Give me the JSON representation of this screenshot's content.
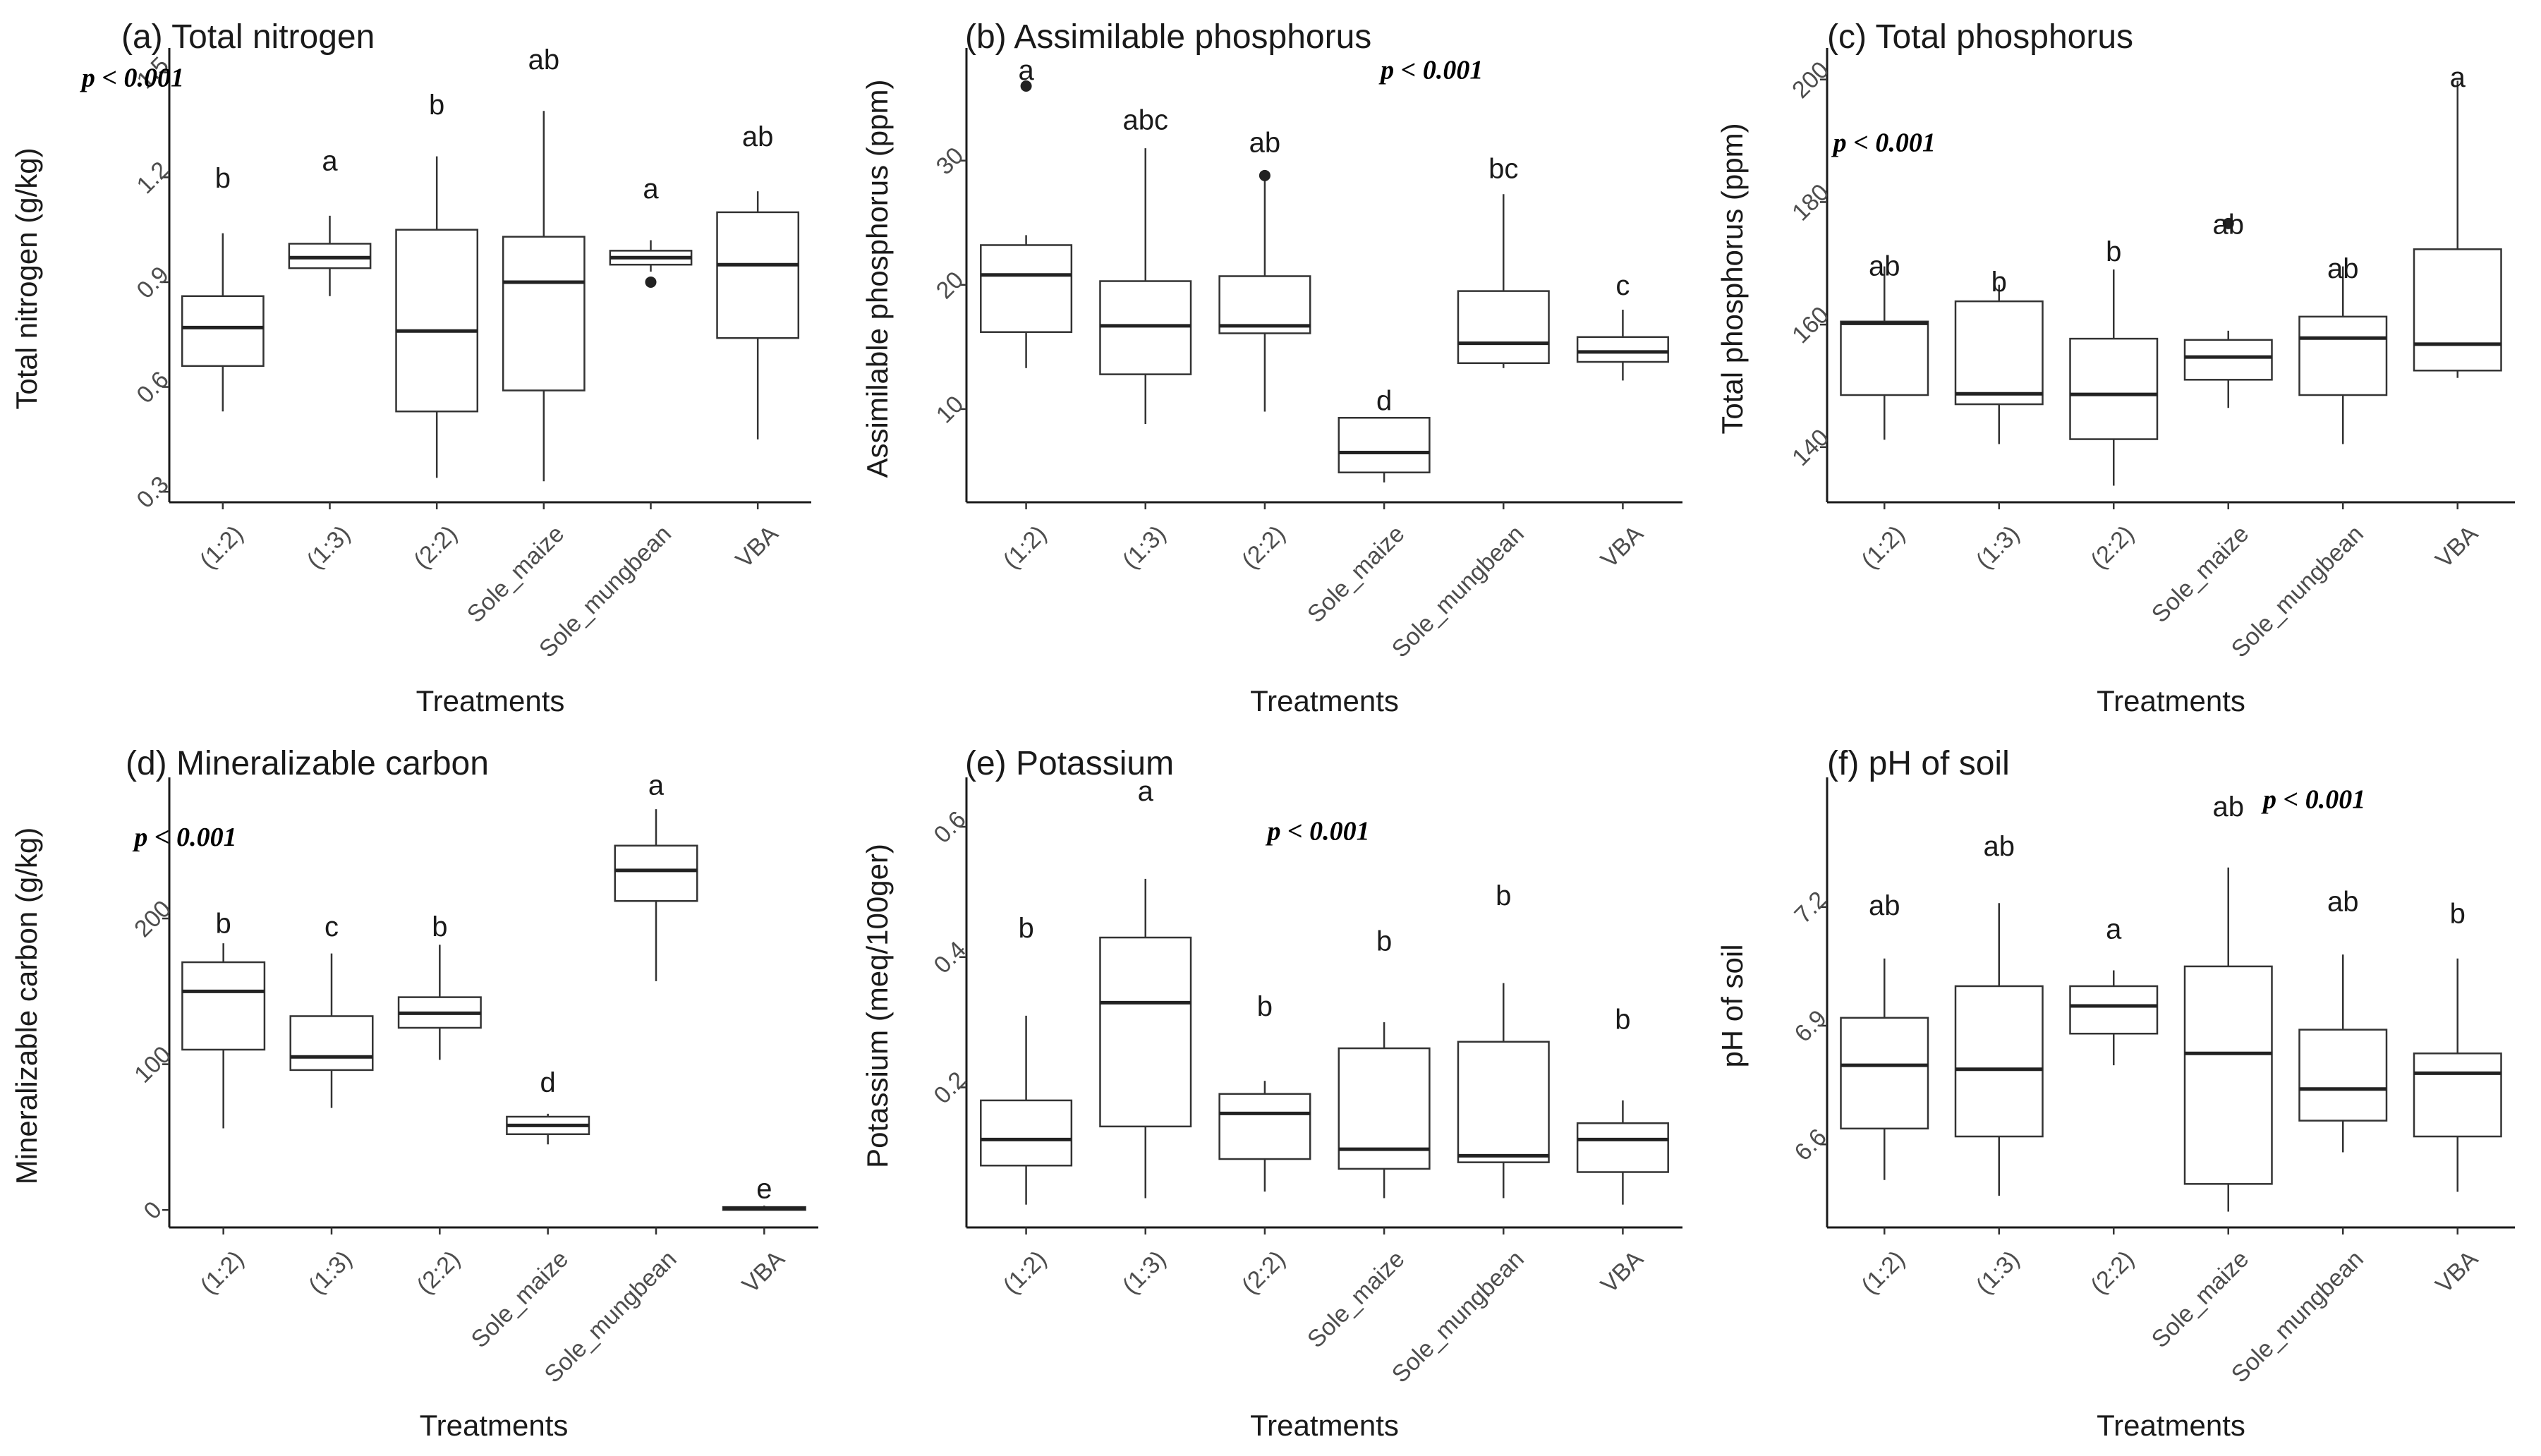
{
  "chart_data": [
    {
      "type": "boxplot",
      "title": "(a) Total nitrogen",
      "ylabel": "Total nitrogen (g/kg)",
      "xlabel": "Treatments",
      "pvalue": "p < 0.001",
      "pvalue_pos": [
        0.16,
        1.46
      ],
      "ylim": [
        0.27,
        1.55
      ],
      "yticks": [
        0.3,
        0.6,
        0.9,
        1.2,
        1.5
      ],
      "ytick_labels": [
        "0.3",
        "0.6",
        "0.9",
        "1.2",
        "1.5"
      ],
      "categories": [
        "(1:2)",
        "(1:3)",
        "(2:2)",
        "Sole_maize",
        "Sole_mungbean",
        "VBA"
      ],
      "boxes": [
        {
          "min": 0.53,
          "q1": 0.66,
          "median": 0.77,
          "q3": 0.86,
          "max": 1.04,
          "outliers": [],
          "letter": "b",
          "letter_y": 1.17
        },
        {
          "min": 0.86,
          "q1": 0.94,
          "median": 0.97,
          "q3": 1.01,
          "max": 1.09,
          "outliers": [],
          "letter": "a",
          "letter_y": 1.22
        },
        {
          "min": 0.34,
          "q1": 0.53,
          "median": 0.76,
          "q3": 1.05,
          "max": 1.26,
          "outliers": [],
          "letter": "b",
          "letter_y": 1.38
        },
        {
          "min": 0.33,
          "q1": 0.59,
          "median": 0.9,
          "q3": 1.03,
          "max": 1.39,
          "outliers": [],
          "letter": "ab",
          "letter_y": 1.51
        },
        {
          "min": 0.93,
          "q1": 0.95,
          "median": 0.97,
          "q3": 0.99,
          "max": 1.02,
          "outliers": [
            0.9
          ],
          "letter": "a",
          "letter_y": 1.14
        },
        {
          "min": 0.45,
          "q1": 0.74,
          "median": 0.95,
          "q3": 1.1,
          "max": 1.16,
          "outliers": [],
          "letter": "ab",
          "letter_y": 1.29
        }
      ]
    },
    {
      "type": "boxplot",
      "title": "(b) Assimilable phosphorus",
      "ylabel": "Assimilable phosphorus (ppm)",
      "xlabel": "Treatments",
      "pvalue": "p < 0.001",
      "pvalue_pos": [
        4.4,
        36.6
      ],
      "ylim": [
        2.5,
        38.5
      ],
      "yticks": [
        10,
        20,
        30
      ],
      "ytick_labels": [
        "10",
        "20",
        "30"
      ],
      "categories": [
        "(1:2)",
        "(1:3)",
        "(2:2)",
        "Sole_maize",
        "Sole_mungbean",
        "VBA"
      ],
      "boxes": [
        {
          "min": 13.3,
          "q1": 16.2,
          "median": 20.8,
          "q3": 23.2,
          "max": 24.0,
          "outliers": [
            36.0
          ],
          "letter": "a",
          "letter_y": 36.5
        },
        {
          "min": 8.8,
          "q1": 12.8,
          "median": 16.7,
          "q3": 20.3,
          "max": 31.0,
          "outliers": [],
          "letter": "abc",
          "letter_y": 32.5
        },
        {
          "min": 9.8,
          "q1": 16.1,
          "median": 16.7,
          "q3": 20.7,
          "max": 28.8,
          "outliers": [
            28.8
          ],
          "letter": "ab",
          "letter_y": 30.7
        },
        {
          "min": 4.1,
          "q1": 4.9,
          "median": 6.5,
          "q3": 9.3,
          "max": 9.3,
          "outliers": [],
          "letter": "d",
          "letter_y": 9.9
        },
        {
          "min": 13.3,
          "q1": 13.7,
          "median": 15.3,
          "q3": 19.5,
          "max": 27.3,
          "outliers": [],
          "letter": "bc",
          "letter_y": 28.6
        },
        {
          "min": 12.3,
          "q1": 13.8,
          "median": 14.6,
          "q3": 15.8,
          "max": 18.0,
          "outliers": [],
          "letter": "c",
          "letter_y": 19.2
        }
      ]
    },
    {
      "type": "boxplot",
      "title": "(c) Total phosphorus",
      "ylabel": "Total phosphorus (ppm)",
      "xlabel": "Treatments",
      "pvalue": "p < 0.001",
      "pvalue_pos": [
        1.0,
        188.3
      ],
      "ylim": [
        131,
        204
      ],
      "yticks": [
        140,
        160,
        180,
        200
      ],
      "ytick_labels": [
        "140",
        "160",
        "180",
        "200"
      ],
      "categories": [
        "(1:2)",
        "(1:3)",
        "(2:2)",
        "Sole_maize",
        "Sole_mungbean",
        "VBA"
      ],
      "boxes": [
        {
          "min": 141.2,
          "q1": 148.5,
          "median": 160.2,
          "q3": 160.5,
          "max": 169.5,
          "outliers": [],
          "letter": "ab",
          "letter_y": 168.0
        },
        {
          "min": 140.5,
          "q1": 147.0,
          "median": 148.7,
          "q3": 163.8,
          "max": 166.5,
          "outliers": [],
          "letter": "b",
          "letter_y": 165.4
        },
        {
          "min": 133.7,
          "q1": 141.3,
          "median": 148.6,
          "q3": 157.7,
          "max": 169.0,
          "outliers": [],
          "letter": "b",
          "letter_y": 170.4
        },
        {
          "min": 146.4,
          "q1": 151.0,
          "median": 154.7,
          "q3": 157.5,
          "max": 159.0,
          "outliers": [
            176.5
          ],
          "letter": "ab",
          "letter_y": 174.8
        },
        {
          "min": 140.5,
          "q1": 148.5,
          "median": 157.8,
          "q3": 161.3,
          "max": 169.5,
          "outliers": [],
          "letter": "ab",
          "letter_y": 167.6
        },
        {
          "min": 151.3,
          "q1": 152.5,
          "median": 156.8,
          "q3": 172.3,
          "max": 199.8,
          "outliers": [],
          "letter": "a",
          "letter_y": 198.8
        }
      ]
    },
    {
      "type": "boxplot",
      "title": "(d) Mineralizable carbon",
      "ylabel": "Mineralizable carbon (g/kg)",
      "xlabel": "Treatments",
      "pvalue": "p < 0.001",
      "pvalue_pos": [
        0.65,
        250
      ],
      "ylim": [
        -12,
        292
      ],
      "yticks": [
        0,
        100,
        200
      ],
      "ytick_labels": [
        "0",
        "100",
        "200"
      ],
      "categories": [
        "(1:2)",
        "(1:3)",
        "(2:2)",
        "Sole_maize",
        "Sole_mungbean",
        "VBA"
      ],
      "boxes": [
        {
          "min": 56,
          "q1": 110,
          "median": 150,
          "q3": 170,
          "max": 183,
          "outliers": [],
          "letter": "b",
          "letter_y": 190
        },
        {
          "min": 70,
          "q1": 96,
          "median": 105,
          "q3": 133,
          "max": 176,
          "outliers": [],
          "letter": "c",
          "letter_y": 188
        },
        {
          "min": 103,
          "q1": 125,
          "median": 135,
          "q3": 146,
          "max": 182,
          "outliers": [],
          "letter": "b",
          "letter_y": 188
        },
        {
          "min": 45,
          "q1": 52,
          "median": 58,
          "q3": 64,
          "max": 66,
          "outliers": [],
          "letter": "d",
          "letter_y": 81
        },
        {
          "min": 157,
          "q1": 212,
          "median": 233,
          "q3": 250,
          "max": 275,
          "outliers": [],
          "letter": "a",
          "letter_y": 285
        },
        {
          "min": 0,
          "q1": 0,
          "median": 1,
          "q3": 2,
          "max": 3,
          "outliers": [],
          "letter": "e",
          "letter_y": 8
        }
      ]
    },
    {
      "type": "boxplot",
      "title": "(e) Potassium",
      "ylabel": "Potassium (meq/100ger)",
      "xlabel": "Treatments",
      "pvalue": "p < 0.001",
      "pvalue_pos": [
        3.45,
        0.58
      ],
      "ylim": [
        -0.015,
        0.665
      ],
      "yticks": [
        0.2,
        0.4,
        0.6
      ],
      "ytick_labels": [
        "0.2",
        "0.4",
        "0.6"
      ],
      "categories": [
        "(1:2)",
        "(1:3)",
        "(2:2)",
        "Sole_maize",
        "Sole_mungbean",
        "VBA"
      ],
      "boxes": [
        {
          "min": 0.02,
          "q1": 0.08,
          "median": 0.12,
          "q3": 0.18,
          "max": 0.31,
          "outliers": [],
          "letter": "b",
          "letter_y": 0.43
        },
        {
          "min": 0.03,
          "q1": 0.14,
          "median": 0.33,
          "q3": 0.43,
          "max": 0.52,
          "outliers": [],
          "letter": "a",
          "letter_y": 0.64
        },
        {
          "min": 0.04,
          "q1": 0.09,
          "median": 0.16,
          "q3": 0.19,
          "max": 0.21,
          "outliers": [],
          "letter": "b",
          "letter_y": 0.31
        },
        {
          "min": 0.03,
          "q1": 0.075,
          "median": 0.105,
          "q3": 0.26,
          "max": 0.3,
          "outliers": [],
          "letter": "b",
          "letter_y": 0.41
        },
        {
          "min": 0.03,
          "q1": 0.085,
          "median": 0.095,
          "q3": 0.27,
          "max": 0.36,
          "outliers": [],
          "letter": "b",
          "letter_y": 0.48
        },
        {
          "min": 0.02,
          "q1": 0.07,
          "median": 0.12,
          "q3": 0.145,
          "max": 0.18,
          "outliers": [],
          "letter": "b",
          "letter_y": 0.29
        }
      ]
    },
    {
      "type": "boxplot",
      "title": "(f) pH of soil",
      "ylabel": "pH of soil",
      "xlabel": "Treatments",
      "pvalue": "p < 0.001",
      "pvalue_pos": [
        4.75,
        7.45
      ],
      "ylim": [
        6.39,
        7.51
      ],
      "yticks": [
        6.6,
        6.9,
        7.2
      ],
      "ytick_labels": [
        "6.6",
        "6.9",
        "7.2"
      ],
      "categories": [
        "(1:2)",
        "(1:3)",
        "(2:2)",
        "Sole_maize",
        "Sole_mungbean",
        "VBA"
      ],
      "boxes": [
        {
          "min": 6.51,
          "q1": 6.64,
          "median": 6.8,
          "q3": 6.92,
          "max": 7.07,
          "outliers": [],
          "letter": "ab",
          "letter_y": 7.18
        },
        {
          "min": 6.47,
          "q1": 6.62,
          "median": 6.79,
          "q3": 7.0,
          "max": 7.21,
          "outliers": [],
          "letter": "ab",
          "letter_y": 7.33
        },
        {
          "min": 6.8,
          "q1": 6.88,
          "median": 6.95,
          "q3": 7.0,
          "max": 7.04,
          "outliers": [],
          "letter": "a",
          "letter_y": 7.12
        },
        {
          "min": 6.43,
          "q1": 6.5,
          "median": 6.83,
          "q3": 7.05,
          "max": 7.3,
          "outliers": [],
          "letter": "ab",
          "letter_y": 7.43
        },
        {
          "min": 6.58,
          "q1": 6.66,
          "median": 6.74,
          "q3": 6.89,
          "max": 7.08,
          "outliers": [],
          "letter": "ab",
          "letter_y": 7.19
        },
        {
          "min": 6.48,
          "q1": 6.62,
          "median": 6.78,
          "q3": 6.83,
          "max": 7.07,
          "outliers": [],
          "letter": "b",
          "letter_y": 7.16
        }
      ]
    }
  ]
}
